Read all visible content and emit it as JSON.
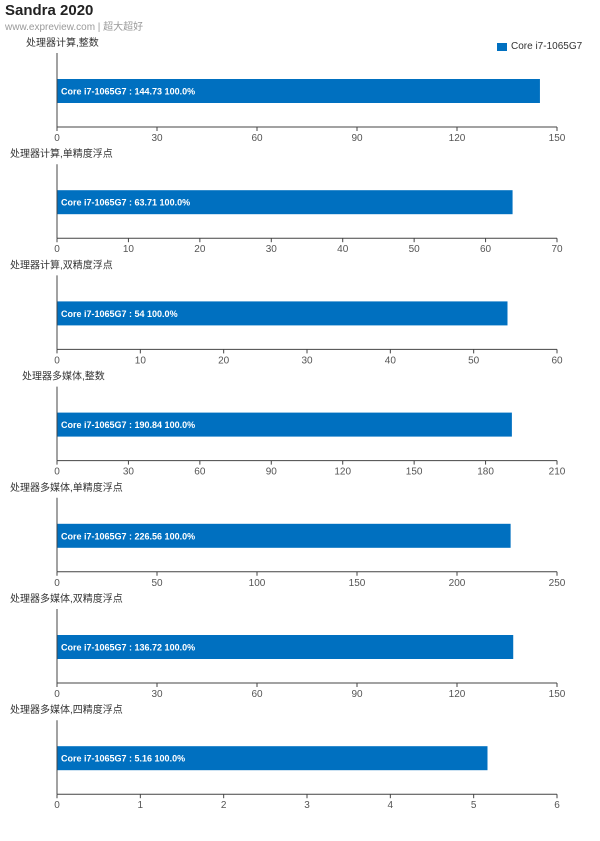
{
  "header": {
    "title": "Sandra 2020",
    "subtitle": "www.expreview.com | 超大超好"
  },
  "legend": {
    "label": "Core i7-1065G7",
    "color": "#0070c0"
  },
  "chart_data": [
    {
      "type": "bar",
      "orientation": "horizontal",
      "title": "处理器计算,整数",
      "categories": [
        "Core i7-1065G7"
      ],
      "series": [
        {
          "name": "Core i7-1065G7",
          "values": [
            144.73
          ]
        }
      ],
      "bar_labels": [
        "Core i7-1065G7 : 144.73  100.0%"
      ],
      "xlim": [
        0,
        150
      ],
      "ticks": [
        0,
        30,
        60,
        90,
        120,
        150
      ]
    },
    {
      "type": "bar",
      "orientation": "horizontal",
      "title": "处理器计算,单精度浮点",
      "categories": [
        "Core i7-1065G7"
      ],
      "series": [
        {
          "name": "Core i7-1065G7",
          "values": [
            63.71
          ]
        }
      ],
      "bar_labels": [
        "Core i7-1065G7 : 63.71  100.0%"
      ],
      "xlim": [
        0,
        70
      ],
      "ticks": [
        0,
        10,
        20,
        30,
        40,
        50,
        60,
        70
      ]
    },
    {
      "type": "bar",
      "orientation": "horizontal",
      "title": "处理器计算,双精度浮点",
      "categories": [
        "Core i7-1065G7"
      ],
      "series": [
        {
          "name": "Core i7-1065G7",
          "values": [
            54
          ]
        }
      ],
      "bar_labels": [
        "Core i7-1065G7 : 54  100.0%"
      ],
      "xlim": [
        0,
        60
      ],
      "ticks": [
        0,
        10,
        20,
        30,
        40,
        50,
        60
      ]
    },
    {
      "type": "bar",
      "orientation": "horizontal",
      "title": "处理器多媒体,整数",
      "categories": [
        "Core i7-1065G7"
      ],
      "series": [
        {
          "name": "Core i7-1065G7",
          "values": [
            190.84
          ]
        }
      ],
      "bar_labels": [
        "Core i7-1065G7 : 190.84  100.0%"
      ],
      "xlim": [
        0,
        210
      ],
      "ticks": [
        0,
        30,
        60,
        90,
        120,
        150,
        180,
        210
      ]
    },
    {
      "type": "bar",
      "orientation": "horizontal",
      "title": "处理器多媒体,单精度浮点",
      "categories": [
        "Core i7-1065G7"
      ],
      "series": [
        {
          "name": "Core i7-1065G7",
          "values": [
            226.56
          ]
        }
      ],
      "bar_labels": [
        "Core i7-1065G7 : 226.56  100.0%"
      ],
      "xlim": [
        0,
        250
      ],
      "ticks": [
        0,
        50,
        100,
        150,
        200,
        250
      ]
    },
    {
      "type": "bar",
      "orientation": "horizontal",
      "title": "处理器多媒体,双精度浮点",
      "categories": [
        "Core i7-1065G7"
      ],
      "series": [
        {
          "name": "Core i7-1065G7",
          "values": [
            136.72
          ]
        }
      ],
      "bar_labels": [
        "Core i7-1065G7 : 136.72  100.0%"
      ],
      "xlim": [
        0,
        150
      ],
      "ticks": [
        0,
        30,
        60,
        90,
        120,
        150
      ]
    },
    {
      "type": "bar",
      "orientation": "horizontal",
      "title": "处理器多媒体,四精度浮点",
      "categories": [
        "Core i7-1065G7"
      ],
      "series": [
        {
          "name": "Core i7-1065G7",
          "values": [
            5.16
          ]
        }
      ],
      "bar_labels": [
        "Core i7-1065G7 : 5.16  100.0%"
      ],
      "xlim": [
        0,
        6
      ],
      "ticks": [
        0,
        1,
        2,
        3,
        4,
        5,
        6
      ]
    }
  ]
}
